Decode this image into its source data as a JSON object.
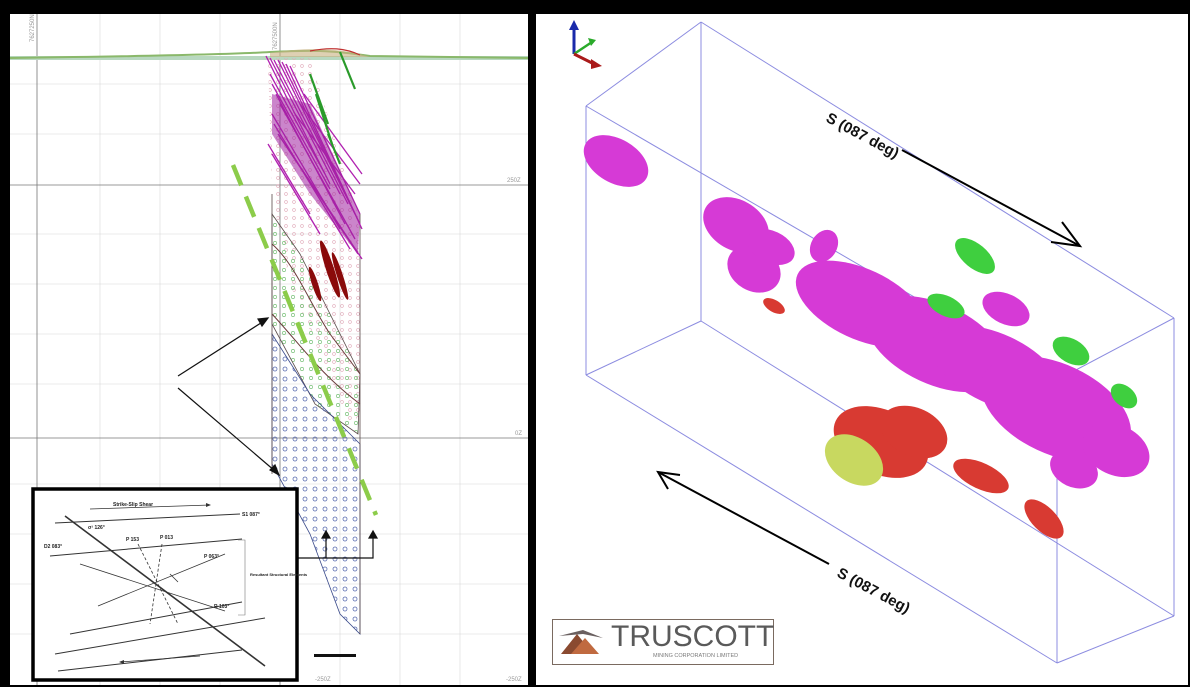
{
  "left_section": {
    "northing_labels": [
      "7627250N",
      "7627500N"
    ],
    "elevation_labels": [
      "250Z",
      "0Z",
      "-250Z",
      "-250Z"
    ],
    "inset": {
      "title": "Strike-Slip Shear",
      "s1_label": "S1 087°",
      "sigma_label": "σ¹ 126°",
      "d2_label": "D2 083°",
      "p_label": "P 063°",
      "r_label": "R 103°",
      "p153_label": "P 153",
      "p013_label": "P 013",
      "resultant_label": "Resultant Structural Elements"
    }
  },
  "right_view": {
    "direction_label_top": "S (087 deg)",
    "direction_label_bottom": "S (087 deg)",
    "logo": {
      "name": "TRUSCOTT",
      "subtitle": "MINING CORPORATION LIMITED"
    },
    "colors": {
      "magenta": "#d63ad6",
      "green": "#3fcf3f",
      "red": "#d83a32",
      "yellow": "#c8d860",
      "box": "#8c8ce0"
    }
  }
}
